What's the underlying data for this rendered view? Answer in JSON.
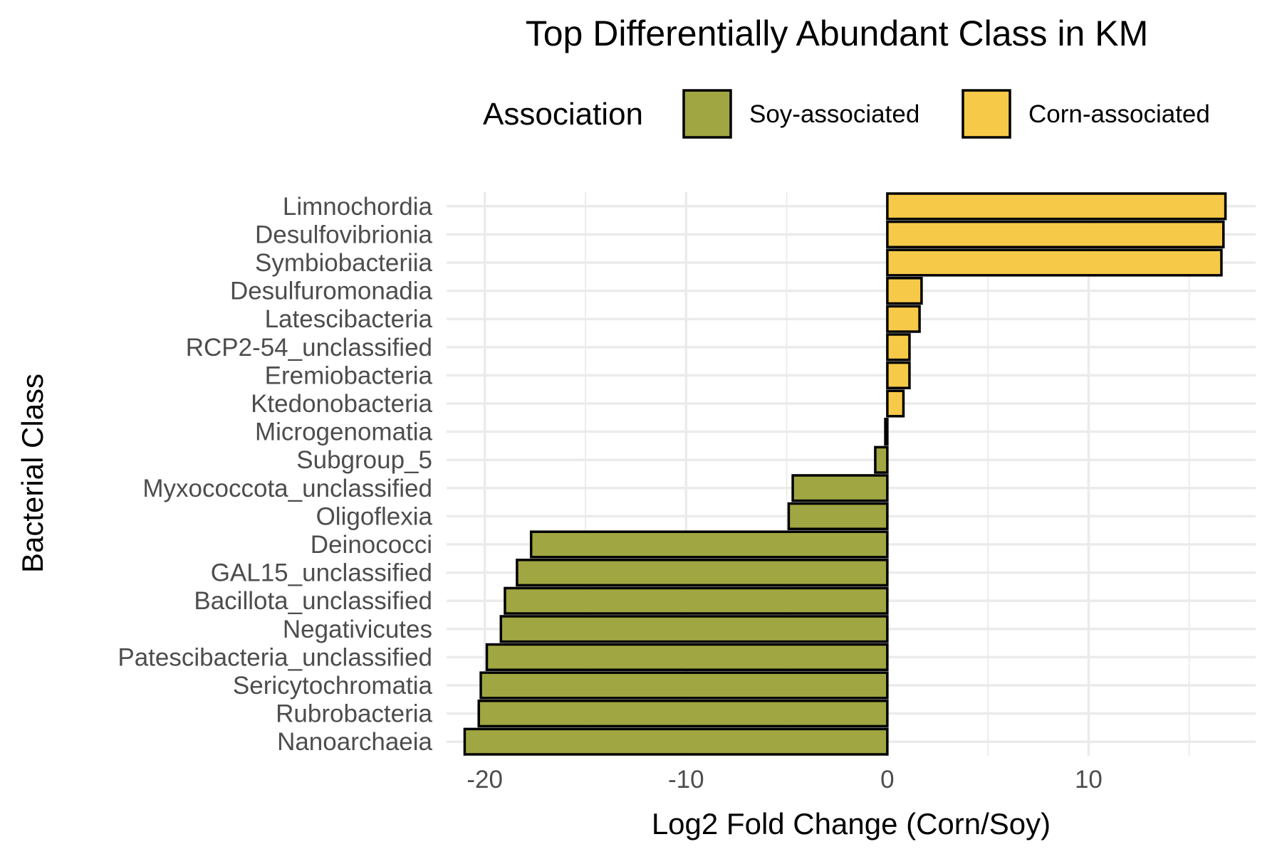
{
  "chart_data": {
    "type": "bar",
    "orientation": "horizontal",
    "title": "Top Differentially Abundant Class in KM",
    "xlabel": "Log2 Fold Change (Corn/Soy)",
    "ylabel": "Bacterial Class",
    "xlim": [
      -21.9,
      18.3
    ],
    "xticks": [
      -20,
      -10,
      0,
      10
    ],
    "xtick_labels": [
      "-20",
      "-10",
      "0",
      "10"
    ],
    "grid": true,
    "legend": {
      "title": "Association",
      "placement": "top",
      "entries": [
        {
          "label": "Soy-associated",
          "color": "#a0a641"
        },
        {
          "label": "Corn-associated",
          "color": "#f7c948"
        }
      ]
    },
    "categories": [
      "Limnochordia",
      "Desulfovibrionia",
      "Symbiobacteriia",
      "Desulfuromonadia",
      "Latescibacteria",
      "RCP2-54_unclassified",
      "Eremiobacteria",
      "Ktedonobacteria",
      "Microgenomatia",
      "Subgroup_5",
      "Myxococcota_unclassified",
      "Oligoflexia",
      "Deinococci",
      "GAL15_unclassified",
      "Bacillota_unclassified",
      "Negativicutes",
      "Patescibacteria_unclassified",
      "Sericytochromatia",
      "Rubrobacteria",
      "Nanoarchaeia"
    ],
    "values": [
      16.8,
      16.7,
      16.6,
      1.7,
      1.6,
      1.1,
      1.1,
      0.8,
      -0.1,
      -0.6,
      -4.7,
      -4.9,
      -17.7,
      -18.4,
      -19.0,
      -19.2,
      -19.9,
      -20.2,
      -20.3,
      -21.0
    ],
    "colors": {
      "positive": "#f7c948",
      "negative": "#a0a641",
      "outline": "#000000"
    }
  }
}
